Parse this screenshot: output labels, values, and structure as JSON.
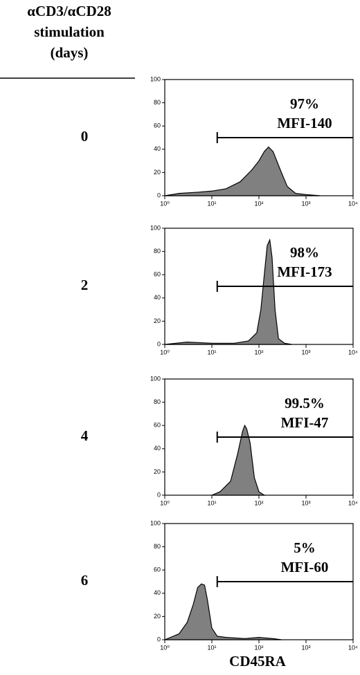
{
  "header": "αCD3/αCD28 stimulation (days)",
  "x_label": "CD45RA",
  "chart_data": [
    {
      "type": "area",
      "label": "0",
      "log_x": true,
      "color": "#808080",
      "x": [
        1,
        2,
        5,
        10,
        20,
        40,
        70,
        100,
        130,
        160,
        200,
        300,
        400,
        600,
        1000,
        2000
      ],
      "values": [
        0,
        2,
        3,
        4,
        6,
        12,
        22,
        30,
        38,
        42,
        38,
        20,
        8,
        2,
        1,
        0
      ],
      "xlim": [
        1,
        10000
      ],
      "ylim": [
        0,
        100
      ],
      "xticks": [
        {
          "value": 1,
          "label": "10⁰"
        },
        {
          "value": 10,
          "label": "10¹"
        },
        {
          "value": 100,
          "label": "10²"
        },
        {
          "value": 1000,
          "label": "10³"
        },
        {
          "value": 10000,
          "label": "10⁴"
        }
      ],
      "yticks": [
        0,
        20,
        40,
        60,
        80,
        100
      ],
      "gate": {
        "x": [
          13,
          10000
        ],
        "y": 50
      },
      "annotations": [
        "97%",
        "MFI-140"
      ]
    },
    {
      "type": "area",
      "label": "2",
      "log_x": true,
      "color": "#808080",
      "x": [
        1,
        3,
        10,
        30,
        60,
        90,
        110,
        130,
        150,
        170,
        190,
        220,
        260,
        350,
        500
      ],
      "values": [
        0,
        2,
        1,
        1,
        3,
        10,
        30,
        60,
        85,
        90,
        75,
        30,
        5,
        1,
        0
      ],
      "xlim": [
        1,
        10000
      ],
      "ylim": [
        0,
        100
      ],
      "xticks": [
        {
          "value": 1,
          "label": "10⁰"
        },
        {
          "value": 10,
          "label": "10¹"
        },
        {
          "value": 100,
          "label": "10²"
        },
        {
          "value": 1000,
          "label": "10³"
        },
        {
          "value": 10000,
          "label": "10⁴"
        }
      ],
      "yticks": [
        0,
        20,
        40,
        60,
        80,
        100
      ],
      "gate": {
        "x": [
          13,
          10000
        ],
        "y": 50
      },
      "annotations": [
        "98%",
        "MFI-173"
      ]
    },
    {
      "type": "area",
      "label": "4",
      "log_x": true,
      "color": "#808080",
      "x": [
        10,
        15,
        25,
        35,
        45,
        50,
        55,
        65,
        80,
        100,
        130
      ],
      "values": [
        0,
        3,
        12,
        35,
        55,
        60,
        57,
        45,
        15,
        3,
        0
      ],
      "xlim": [
        1,
        10000
      ],
      "ylim": [
        0,
        100
      ],
      "xticks": [
        {
          "value": 1,
          "label": "10⁰"
        },
        {
          "value": 10,
          "label": "10¹"
        },
        {
          "value": 100,
          "label": "10²"
        },
        {
          "value": 1000,
          "label": "10³"
        },
        {
          "value": 10000,
          "label": "10⁴"
        }
      ],
      "yticks": [
        0,
        20,
        40,
        60,
        80,
        100
      ],
      "gate": {
        "x": [
          13,
          10000
        ],
        "y": 50
      },
      "annotations": [
        "99.5%",
        "MFI-47"
      ]
    },
    {
      "type": "area",
      "label": "6",
      "log_x": true,
      "color": "#808080",
      "x": [
        1,
        2,
        3,
        4,
        5,
        6,
        7,
        8,
        10,
        13,
        20,
        50,
        100,
        200,
        300
      ],
      "values": [
        0,
        5,
        15,
        30,
        45,
        48,
        47,
        35,
        10,
        3,
        2,
        1,
        2,
        1,
        0
      ],
      "xlim": [
        1,
        10000
      ],
      "ylim": [
        0,
        100
      ],
      "xticks": [
        {
          "value": 1,
          "label": "10⁰"
        },
        {
          "value": 10,
          "label": "10¹"
        },
        {
          "value": 100,
          "label": "10²"
        },
        {
          "value": 1000,
          "label": "10³"
        },
        {
          "value": 10000,
          "label": "10⁴"
        }
      ],
      "yticks": [
        0,
        20,
        40,
        60,
        80,
        100
      ],
      "gate": {
        "x": [
          13,
          10000
        ],
        "y": 50
      },
      "annotations": [
        "5%",
        "MFI-60"
      ]
    }
  ]
}
